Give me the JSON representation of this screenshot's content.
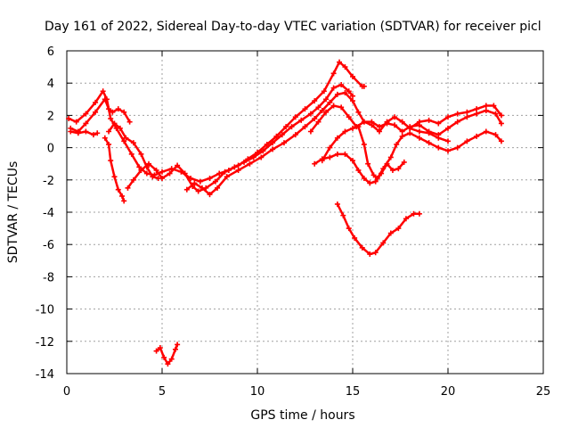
{
  "chart_data": {
    "type": "scatter",
    "title": "Day 161 of 2022, Sidereal Day-to-day VTEC variation (SDTVAR) for receiver picl",
    "xlabel": "GPS time / hours",
    "ylabel": "SDTVAR / TECUs",
    "xlim": [
      0,
      25
    ],
    "ylim": [
      -14,
      6
    ],
    "xticks": [
      "0",
      "5",
      "10",
      "15",
      "20",
      "25"
    ],
    "yticks": [
      "6",
      "4",
      "2",
      "0",
      "-2",
      "-4",
      "-6",
      "-8",
      "-10",
      "-12",
      "-14"
    ],
    "xtick_values": [
      0,
      5,
      10,
      15,
      20,
      25
    ],
    "ytick_values": [
      6,
      4,
      2,
      0,
      -2,
      -4,
      -6,
      -8,
      -10,
      -12,
      -14
    ],
    "grid": true,
    "marker": "plus",
    "color": "#ff0000",
    "series": [
      {
        "values": [
          [
            0.1,
            1.8
          ],
          [
            0.5,
            1.6
          ],
          [
            1.0,
            2.1
          ],
          [
            1.5,
            2.8
          ],
          [
            1.9,
            3.5
          ],
          [
            2.1,
            3.0
          ],
          [
            2.3,
            1.8
          ],
          [
            2.6,
            1.2
          ],
          [
            3.0,
            0.4
          ],
          [
            3.4,
            -0.4
          ],
          [
            3.8,
            -1.2
          ],
          [
            4.2,
            -1.6
          ],
          [
            4.6,
            -1.7
          ],
          [
            5.0,
            -1.5
          ],
          [
            5.5,
            -1.3
          ],
          [
            6.0,
            -1.5
          ],
          [
            6.5,
            -1.9
          ],
          [
            7.0,
            -2.1
          ],
          [
            7.5,
            -1.9
          ],
          [
            8.0,
            -1.6
          ],
          [
            8.5,
            -1.4
          ],
          [
            9.0,
            -1.1
          ],
          [
            9.5,
            -0.7
          ],
          [
            10.0,
            -0.3
          ],
          [
            10.5,
            0.2
          ],
          [
            11.0,
            0.7
          ],
          [
            11.5,
            1.3
          ],
          [
            12.0,
            1.9
          ],
          [
            12.5,
            2.4
          ],
          [
            13.0,
            2.9
          ],
          [
            13.5,
            3.5
          ],
          [
            14.0,
            4.6
          ],
          [
            14.3,
            5.3
          ],
          [
            14.6,
            5.0
          ],
          [
            15.0,
            4.4
          ],
          [
            15.5,
            3.8
          ],
          [
            15.6,
            3.8
          ]
        ]
      },
      {
        "values": [
          [
            0.2,
            1.2
          ],
          [
            0.6,
            1.0
          ],
          [
            1.0,
            1.5
          ],
          [
            1.5,
            2.2
          ],
          [
            2.0,
            3.0
          ],
          [
            2.2,
            2.4
          ],
          [
            2.4,
            2.2
          ],
          [
            2.7,
            2.4
          ],
          [
            3.0,
            2.2
          ],
          [
            3.3,
            1.6
          ]
        ]
      },
      {
        "values": [
          [
            0.2,
            1.0
          ],
          [
            0.6,
            0.9
          ],
          [
            1.0,
            1.0
          ],
          [
            1.4,
            0.8
          ],
          [
            1.6,
            0.9
          ]
        ]
      },
      {
        "values": [
          [
            2.0,
            0.6
          ],
          [
            2.2,
            0.2
          ],
          [
            2.3,
            -0.8
          ],
          [
            2.5,
            -1.8
          ],
          [
            2.7,
            -2.6
          ],
          [
            2.9,
            -3.0
          ],
          [
            3.0,
            -3.3
          ]
        ]
      },
      {
        "values": [
          [
            2.2,
            1.0
          ],
          [
            2.5,
            1.5
          ],
          [
            2.8,
            1.2
          ],
          [
            3.1,
            0.6
          ],
          [
            3.5,
            0.3
          ],
          [
            3.9,
            -0.4
          ],
          [
            4.2,
            -1.2
          ],
          [
            4.5,
            -1.8
          ],
          [
            4.8,
            -1.9
          ]
        ]
      },
      {
        "values": [
          [
            3.2,
            -2.5
          ],
          [
            3.5,
            -2.0
          ],
          [
            3.9,
            -1.4
          ],
          [
            4.3,
            -1.0
          ],
          [
            4.7,
            -1.4
          ],
          [
            5.0,
            -1.9
          ],
          [
            5.4,
            -1.6
          ],
          [
            5.8,
            -1.1
          ],
          [
            6.2,
            -1.6
          ],
          [
            6.6,
            -2.4
          ],
          [
            6.9,
            -2.7
          ],
          [
            7.3,
            -2.5
          ],
          [
            7.8,
            -2.1
          ],
          [
            8.3,
            -1.5
          ],
          [
            8.8,
            -1.2
          ],
          [
            9.3,
            -0.9
          ],
          [
            9.8,
            -0.6
          ],
          [
            10.3,
            -0.2
          ],
          [
            10.8,
            0.3
          ],
          [
            11.3,
            0.8
          ],
          [
            11.8,
            1.3
          ],
          [
            12.3,
            1.7
          ],
          [
            12.8,
            2.1
          ],
          [
            13.2,
            2.5
          ],
          [
            13.6,
            3.0
          ],
          [
            14.0,
            3.7
          ],
          [
            14.4,
            3.9
          ],
          [
            14.8,
            3.5
          ],
          [
            15.0,
            3.2
          ]
        ]
      },
      {
        "values": [
          [
            6.3,
            -2.6
          ],
          [
            6.7,
            -2.2
          ],
          [
            7.1,
            -2.5
          ],
          [
            7.5,
            -2.9
          ],
          [
            7.9,
            -2.5
          ],
          [
            8.4,
            -1.8
          ],
          [
            9.0,
            -1.4
          ],
          [
            9.6,
            -1.0
          ],
          [
            10.2,
            -0.6
          ],
          [
            10.8,
            -0.1
          ],
          [
            11.4,
            0.3
          ],
          [
            12.0,
            0.8
          ],
          [
            12.5,
            1.3
          ],
          [
            13.0,
            1.8
          ],
          [
            13.4,
            2.3
          ],
          [
            13.8,
            2.8
          ],
          [
            14.2,
            3.3
          ],
          [
            14.6,
            3.4
          ],
          [
            15.0,
            2.9
          ],
          [
            15.3,
            2.2
          ],
          [
            15.6,
            1.6
          ],
          [
            16.0,
            1.4
          ],
          [
            16.4,
            1.0
          ],
          [
            16.8,
            1.6
          ],
          [
            17.2,
            1.9
          ],
          [
            17.6,
            1.6
          ],
          [
            18.0,
            1.2
          ],
          [
            18.5,
            1.0
          ],
          [
            19.0,
            0.9
          ],
          [
            19.5,
            0.6
          ],
          [
            20.0,
            0.4
          ]
        ]
      },
      {
        "values": [
          [
            12.8,
            1.0
          ],
          [
            13.2,
            1.6
          ],
          [
            13.6,
            2.2
          ],
          [
            14.0,
            2.6
          ],
          [
            14.4,
            2.5
          ],
          [
            14.8,
            1.9
          ],
          [
            15.2,
            1.3
          ],
          [
            15.6,
            1.6
          ],
          [
            16.0,
            1.6
          ],
          [
            16.4,
            1.3
          ],
          [
            16.8,
            1.5
          ],
          [
            17.2,
            1.4
          ],
          [
            17.6,
            1.0
          ],
          [
            18.0,
            1.3
          ],
          [
            18.5,
            1.4
          ],
          [
            19.0,
            1.0
          ],
          [
            19.5,
            0.8
          ],
          [
            20.0,
            1.2
          ],
          [
            20.5,
            1.6
          ],
          [
            21.0,
            1.9
          ],
          [
            21.5,
            2.1
          ],
          [
            22.0,
            2.3
          ],
          [
            22.5,
            2.1
          ],
          [
            22.8,
            1.5
          ]
        ]
      },
      {
        "values": [
          [
            13.4,
            -0.8
          ],
          [
            13.8,
            0.0
          ],
          [
            14.2,
            0.6
          ],
          [
            14.6,
            1.0
          ],
          [
            15.0,
            1.2
          ],
          [
            15.3,
            1.3
          ],
          [
            15.6,
            0.2
          ],
          [
            15.8,
            -1.0
          ],
          [
            16.1,
            -1.7
          ],
          [
            16.3,
            -1.9
          ],
          [
            16.6,
            -1.3
          ],
          [
            17.0,
            -0.6
          ],
          [
            17.3,
            0.2
          ],
          [
            17.6,
            0.7
          ],
          [
            18.0,
            0.9
          ],
          [
            18.5,
            0.6
          ],
          [
            19.0,
            0.3
          ],
          [
            19.5,
            0.0
          ],
          [
            20.0,
            -0.2
          ],
          [
            20.5,
            0.0
          ],
          [
            21.0,
            0.4
          ],
          [
            21.5,
            0.7
          ],
          [
            22.0,
            1.0
          ],
          [
            22.5,
            0.8
          ],
          [
            22.8,
            0.4
          ]
        ]
      },
      {
        "values": [
          [
            13.0,
            -1.0
          ],
          [
            13.4,
            -0.7
          ],
          [
            13.8,
            -0.6
          ],
          [
            14.2,
            -0.4
          ],
          [
            14.6,
            -0.4
          ],
          [
            15.0,
            -0.8
          ],
          [
            15.3,
            -1.4
          ],
          [
            15.6,
            -1.9
          ],
          [
            15.9,
            -2.2
          ],
          [
            16.2,
            -2.1
          ],
          [
            16.5,
            -1.6
          ],
          [
            16.8,
            -1.0
          ],
          [
            17.1,
            -1.4
          ],
          [
            17.4,
            -1.3
          ],
          [
            17.7,
            -0.9
          ]
        ]
      },
      {
        "values": [
          [
            18.0,
            1.2
          ],
          [
            18.5,
            1.6
          ],
          [
            19.0,
            1.7
          ],
          [
            19.5,
            1.5
          ],
          [
            20.0,
            1.9
          ],
          [
            20.5,
            2.1
          ],
          [
            21.0,
            2.2
          ],
          [
            21.5,
            2.4
          ],
          [
            22.0,
            2.6
          ],
          [
            22.4,
            2.6
          ],
          [
            22.8,
            2.0
          ]
        ]
      },
      {
        "values": [
          [
            14.2,
            -3.5
          ],
          [
            14.5,
            -4.2
          ],
          [
            14.8,
            -5.0
          ],
          [
            15.1,
            -5.6
          ],
          [
            15.5,
            -6.2
          ],
          [
            15.9,
            -6.6
          ],
          [
            16.2,
            -6.5
          ],
          [
            16.6,
            -5.9
          ],
          [
            17.0,
            -5.3
          ],
          [
            17.4,
            -5.0
          ],
          [
            17.8,
            -4.4
          ],
          [
            18.2,
            -4.1
          ],
          [
            18.5,
            -4.1
          ]
        ]
      },
      {
        "values": [
          [
            4.7,
            -12.6
          ],
          [
            4.9,
            -12.4
          ],
          [
            5.1,
            -13.0
          ],
          [
            5.3,
            -13.4
          ],
          [
            5.5,
            -13.1
          ],
          [
            5.7,
            -12.5
          ],
          [
            5.8,
            -12.2
          ]
        ]
      }
    ]
  }
}
